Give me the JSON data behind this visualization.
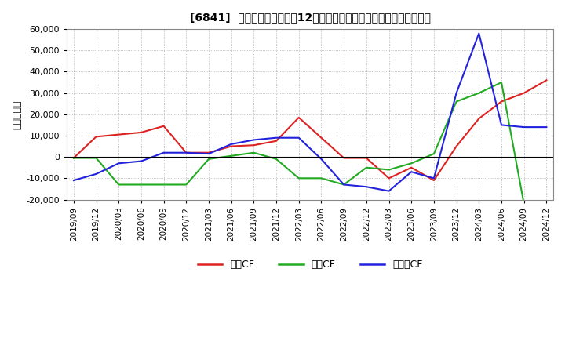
{
  "title": "[6841]  キャッシュフローの12か月移動合計の対前年同期増減額の推移",
  "ylabel": "（百万円）",
  "background_color": "#ffffff",
  "plot_background_color": "#ffffff",
  "grid_color": "#aaaaaa",
  "dates": [
    "2019/09",
    "2019/12",
    "2020/03",
    "2020/06",
    "2020/09",
    "2020/12",
    "2021/03",
    "2021/06",
    "2021/09",
    "2021/12",
    "2022/03",
    "2022/06",
    "2022/09",
    "2022/12",
    "2023/03",
    "2023/06",
    "2023/09",
    "2023/12",
    "2024/03",
    "2024/06",
    "2024/09",
    "2024/12"
  ],
  "営業CF": [
    -500,
    9500,
    10500,
    11500,
    14500,
    2000,
    2000,
    5000,
    5500,
    7500,
    18500,
    9000,
    -500,
    -500,
    -10000,
    -5000,
    -11000,
    5000,
    18000,
    26000,
    30000,
    36000
  ],
  "投資CF": [
    -500,
    -500,
    -13000,
    -13000,
    -13000,
    -13000,
    -1000,
    500,
    2000,
    -1000,
    -10000,
    -10000,
    -13000,
    -5000,
    -6000,
    -3000,
    1500,
    26000,
    30000,
    35000,
    -22000,
    -22000
  ],
  "フリーCF": [
    -11000,
    -8000,
    -3000,
    -2000,
    2000,
    2000,
    1500,
    6000,
    8000,
    9000,
    9000,
    -1000,
    -13000,
    -14000,
    -16000,
    -7000,
    -10000,
    30000,
    58000,
    15000,
    14000,
    14000
  ],
  "ylim": [
    -20000,
    60000
  ],
  "yticks": [
    -20000,
    -10000,
    0,
    10000,
    20000,
    30000,
    40000,
    50000,
    60000
  ],
  "line_colors": {
    "営業CF": "#dd2222",
    "投資CF": "#22aa22",
    "フリーCF": "#2222dd"
  },
  "series_order": [
    "営業CF",
    "投資CF",
    "フリーCF"
  ],
  "legend_labels": [
    "営業CF",
    "投資CF",
    "フリーCF"
  ]
}
